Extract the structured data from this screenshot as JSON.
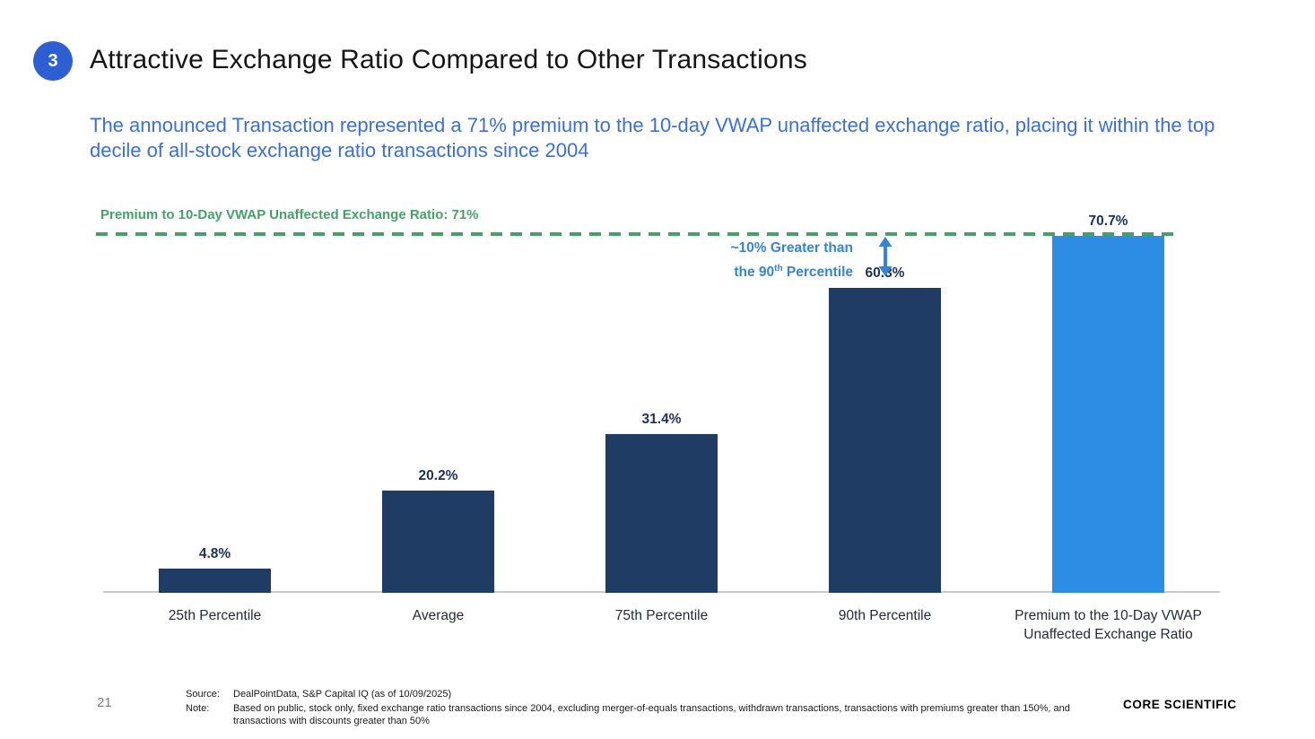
{
  "slide": {
    "badge_number": "3",
    "title": "Attractive Exchange Ratio Compared to Other Transactions",
    "subtitle": "The announced Transaction represented a 71% premium to the 10-day VWAP unaffected exchange ratio, placing it within the top decile of all-stock exchange ratio transactions since 2004"
  },
  "chart_data": {
    "type": "bar",
    "categories": [
      "25th Percentile",
      "Average",
      "75th Percentile",
      "90th Percentile",
      "Premium to the 10-Day VWAP Unaffected Exchange Ratio"
    ],
    "values": [
      4.8,
      20.2,
      31.4,
      60.3,
      70.7
    ],
    "value_labels": [
      "4.8%",
      "20.2%",
      "31.4%",
      "60.3%",
      "70.7%"
    ],
    "bar_colors": [
      "#1e3c64",
      "#1e3c64",
      "#1e3c64",
      "#1e3c64",
      "#2d8de4"
    ],
    "ylim": [
      0,
      71
    ],
    "grid": false,
    "legend": false,
    "reference_line": {
      "value": 71,
      "label": "Premium to 10-Day VWAP Unaffected Exchange Ratio: 71%",
      "color": "#43a169",
      "style": "dashed"
    },
    "annotation": {
      "line1": "~10% Greater than",
      "line2_prefix": "the 90",
      "line2_sup": "th",
      "line2_suffix": " Percentile",
      "color": "#3584d6"
    }
  },
  "footer": {
    "page_number": "21",
    "source_label": "Source:",
    "source_text": "DealPointData, S&P Capital IQ (as of 10/09/2025)",
    "note_label": "Note:",
    "note_text": "Based on public, stock only, fixed exchange ratio transactions since 2004, excluding merger-of-equals transactions, withdrawn transactions, transactions with premiums greater than 150%, and transactions with discounts greater than 50%",
    "logo_text": "CORE SCIENTIFIC"
  },
  "colors": {
    "accent_badge": "#2e5fd2",
    "subtitle_blue": "#3b6fd7",
    "bar_navy": "#1e3c64",
    "bar_light_blue": "#2d8de4",
    "reference_green": "#43a169",
    "annotation_blue": "#3584d6",
    "axis_gray": "#c9c9c9"
  }
}
